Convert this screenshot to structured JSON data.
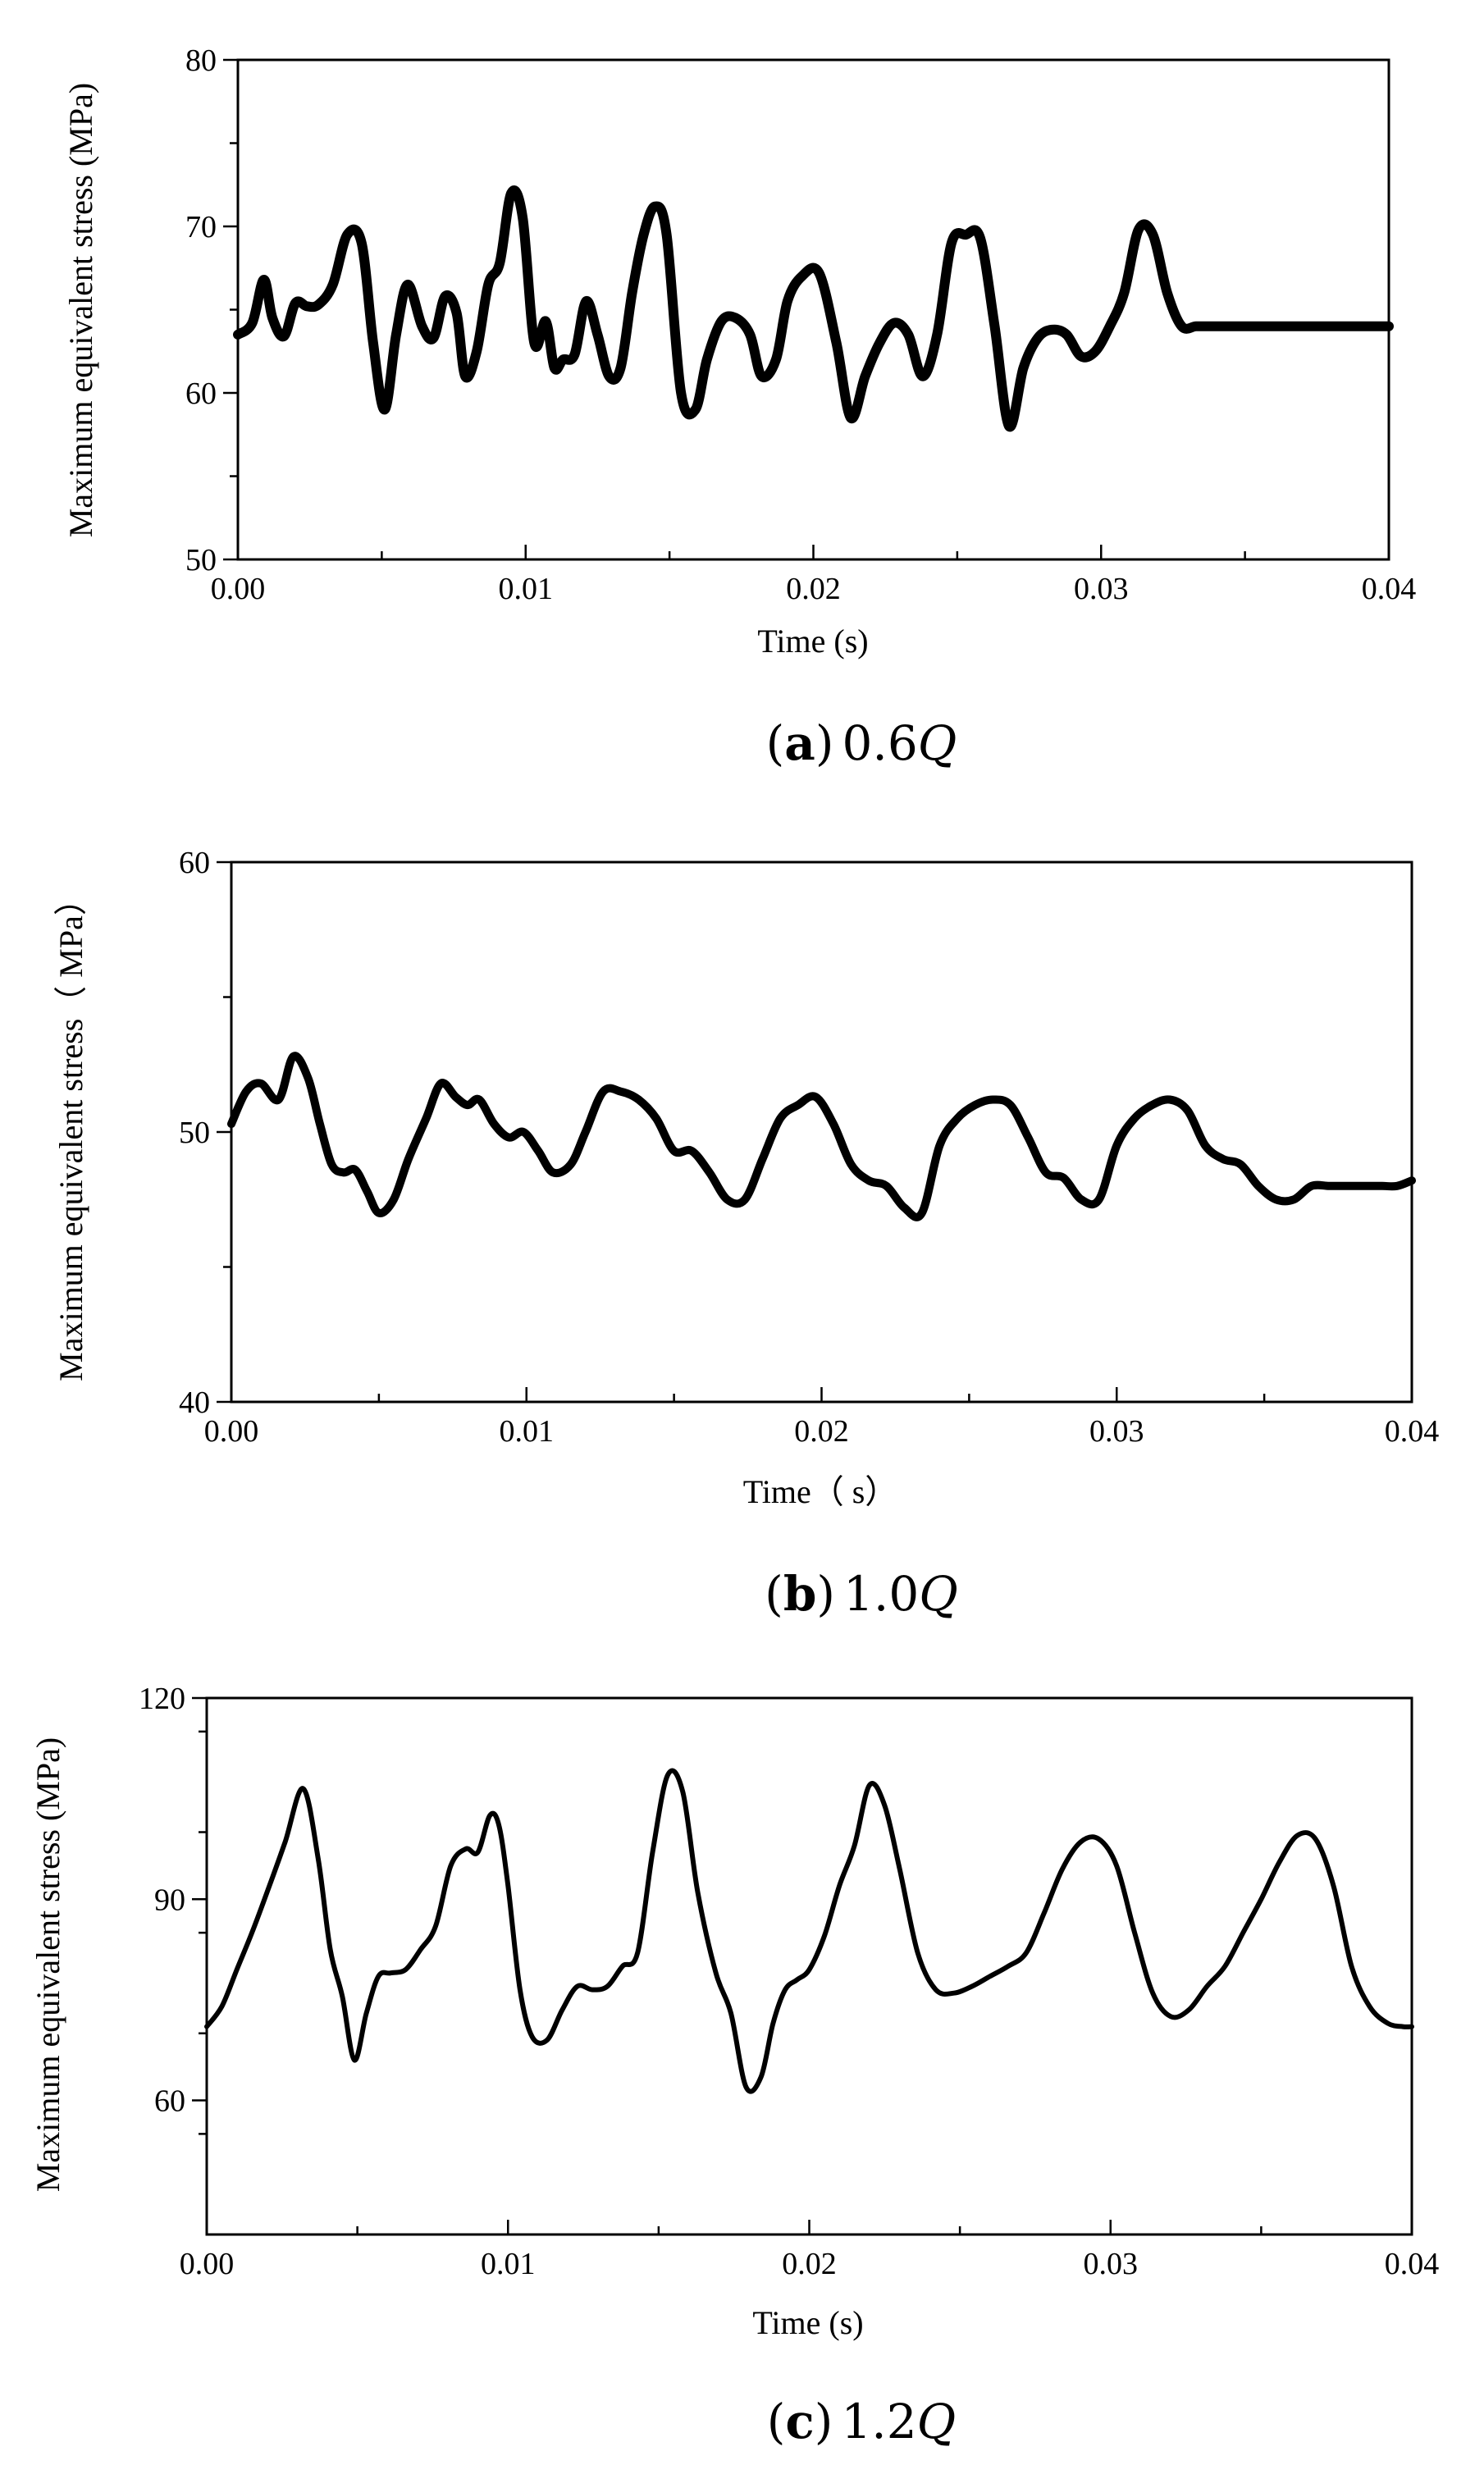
{
  "figure": {
    "panels": [
      {
        "caption": {
          "open": "(",
          "letter": "a",
          "close": ")",
          "value": "0.6",
          "symbol": "Q"
        },
        "chart_data": {
          "type": "line",
          "xlabel": "Time (s)",
          "ylabel": "Maximum equivalent stress (MPa)",
          "xlim": [
            0,
            0.04
          ],
          "ylim": [
            50,
            80
          ],
          "xticks": [
            0.0,
            0.01,
            0.02,
            0.03,
            0.04
          ],
          "xtick_labels": [
            "0.00",
            "0.01",
            "0.02",
            "0.03",
            "0.04"
          ],
          "yticks": [
            50,
            60,
            70,
            80
          ],
          "ytick_labels": [
            "50",
            "60",
            "70",
            "80"
          ],
          "series": [
            {
              "name": "0.6Q",
              "x": [
                0.0,
                0.0005,
                0.0009,
                0.0012,
                0.0016,
                0.002,
                0.0024,
                0.0028,
                0.0033,
                0.0038,
                0.0043,
                0.0047,
                0.0051,
                0.0055,
                0.0059,
                0.0064,
                0.0068,
                0.0072,
                0.0076,
                0.0079,
                0.0083,
                0.0087,
                0.0091,
                0.0095,
                0.0099,
                0.0103,
                0.0107,
                0.011,
                0.0113,
                0.0117,
                0.0121,
                0.0125,
                0.0129,
                0.0133,
                0.0137,
                0.0141,
                0.0145,
                0.0149,
                0.0154,
                0.0159,
                0.0163,
                0.0168,
                0.0173,
                0.0178,
                0.0182,
                0.0187,
                0.0191,
                0.0196,
                0.0202,
                0.0208,
                0.0213,
                0.0218,
                0.0223,
                0.0228,
                0.0233,
                0.0238,
                0.0243,
                0.0248,
                0.0253,
                0.0258,
                0.0263,
                0.0268,
                0.0273,
                0.0278,
                0.0283,
                0.0288,
                0.0293,
                0.0298,
                0.0303,
                0.0308,
                0.0313,
                0.0318,
                0.0323,
                0.0328,
                0.0333,
                0.0338,
                0.0343,
                0.0348,
                0.0353,
                0.0358,
                0.0363,
                0.0368,
                0.0373,
                0.0378,
                0.0383,
                0.0388,
                0.0392,
                0.0396,
                0.04
              ],
              "y": [
                63.5,
                64.2,
                66.8,
                64.5,
                63.4,
                65.4,
                65.2,
                65.3,
                66.5,
                69.5,
                69.0,
                63.0,
                59.0,
                63.5,
                66.5,
                64.0,
                63.3,
                65.8,
                64.8,
                61.0,
                62.5,
                66.5,
                67.8,
                72.0,
                70.5,
                63.0,
                64.3,
                61.5,
                62.0,
                62.3,
                65.5,
                63.5,
                61.0,
                61.5,
                66.0,
                69.5,
                71.2,
                69.5,
                60.0,
                59.0,
                62.0,
                64.3,
                64.5,
                63.5,
                61.0,
                62.0,
                65.5,
                67.0,
                67.2,
                63.0,
                58.5,
                61.0,
                63.0,
                64.2,
                63.5,
                61.0,
                63.5,
                69.0,
                69.5,
                69.3,
                64.0,
                58.0,
                61.5,
                63.3,
                63.8,
                63.5,
                62.2,
                62.5,
                64.0,
                66.0,
                69.8,
                69.5,
                66.0,
                64.0,
                64.0,
                64.0,
                64.0,
                64.0,
                64.0,
                64.0,
                64.0,
                64.0,
                64.0,
                64.0,
                64.0,
                64.0,
                64.0,
                64.0,
                64.0
              ]
            }
          ]
        }
      },
      {
        "caption": {
          "open": "(",
          "letter": "b",
          "close": ")",
          "value": "1.0",
          "symbol": "Q"
        },
        "chart_data": {
          "type": "line",
          "xlabel": "Time（  s）",
          "ylabel": "Maximum equivalent stress（  MPa）",
          "xlim": [
            0,
            0.04
          ],
          "ylim": [
            40,
            60
          ],
          "xticks": [
            0.0,
            0.01,
            0.02,
            0.03,
            0.04
          ],
          "xtick_labels": [
            "0.00",
            "0.01",
            "0.02",
            "0.03",
            "0.04"
          ],
          "yticks": [
            40,
            50,
            60
          ],
          "ytick_labels": [
            "40",
            "50",
            "60"
          ],
          "series": [
            {
              "name": "1.0Q",
              "x": [
                0.0,
                0.0005,
                0.001,
                0.0016,
                0.0021,
                0.0026,
                0.003,
                0.0034,
                0.0038,
                0.0042,
                0.0046,
                0.005,
                0.0055,
                0.006,
                0.0066,
                0.0071,
                0.0076,
                0.008,
                0.0084,
                0.0089,
                0.0094,
                0.0099,
                0.0104,
                0.0109,
                0.0115,
                0.012,
                0.0126,
                0.0132,
                0.0138,
                0.0144,
                0.015,
                0.0156,
                0.0162,
                0.0168,
                0.0174,
                0.018,
                0.0186,
                0.0192,
                0.0198,
                0.0204,
                0.021,
                0.0216,
                0.0222,
                0.0228,
                0.0234,
                0.024,
                0.0246,
                0.0252,
                0.0258,
                0.0264,
                0.027,
                0.0276,
                0.0282,
                0.0288,
                0.0294,
                0.03,
                0.0306,
                0.0312,
                0.0318,
                0.0324,
                0.033,
                0.0336,
                0.0342,
                0.0348,
                0.0354,
                0.036,
                0.0366,
                0.0372,
                0.0378,
                0.0384,
                0.039,
                0.0395,
                0.04
              ],
              "y": [
                50.3,
                51.5,
                51.8,
                51.2,
                52.8,
                52.0,
                50.3,
                48.8,
                48.5,
                48.6,
                47.8,
                47.0,
                47.5,
                49.0,
                50.5,
                51.8,
                51.3,
                51.0,
                51.2,
                50.3,
                49.8,
                50.0,
                49.3,
                48.5,
                48.8,
                50.0,
                51.5,
                51.5,
                51.2,
                50.5,
                49.3,
                49.3,
                48.5,
                47.5,
                47.5,
                49.0,
                50.5,
                51.0,
                51.3,
                50.3,
                48.8,
                48.2,
                48.0,
                47.2,
                47.0,
                49.5,
                50.5,
                51.0,
                51.2,
                51.0,
                49.8,
                48.5,
                48.3,
                47.5,
                47.5,
                49.5,
                50.5,
                51.0,
                51.2,
                50.8,
                49.5,
                49.0,
                48.8,
                48.0,
                47.5,
                47.5,
                48.0,
                48.0,
                48.0,
                48.0,
                48.0,
                48.0,
                48.2
              ]
            }
          ]
        }
      },
      {
        "caption": {
          "open": "(",
          "letter": "c",
          "close": ")",
          "value": "1.2",
          "symbol": "Q"
        },
        "chart_data": {
          "type": "line",
          "xlabel": "Time (s)",
          "ylabel": "Maximum equivalent stress (MPa)",
          "xlim": [
            0,
            0.04
          ],
          "ylim": [
            40,
            120
          ],
          "xticks": [
            0.0,
            0.01,
            0.02,
            0.03,
            0.04
          ],
          "xtick_labels": [
            "0.00",
            "0.01",
            "0.02",
            "0.03",
            "0.04"
          ],
          "yticks": [
            60,
            90,
            120
          ],
          "ytick_labels": [
            "60",
            "90",
            "120"
          ],
          "series": [
            {
              "name": "1.2Q",
              "x": [
                0.0,
                0.0005,
                0.001,
                0.0015,
                0.002,
                0.0026,
                0.0032,
                0.0037,
                0.0041,
                0.0045,
                0.0049,
                0.0053,
                0.0057,
                0.0061,
                0.0066,
                0.0071,
                0.0076,
                0.0081,
                0.0086,
                0.009,
                0.0094,
                0.0097,
                0.01,
                0.0104,
                0.0108,
                0.0113,
                0.0118,
                0.0123,
                0.0128,
                0.0133,
                0.0138,
                0.0143,
                0.0148,
                0.0153,
                0.0158,
                0.0163,
                0.0169,
                0.0174,
                0.0179,
                0.0184,
                0.0188,
                0.0192,
                0.0196,
                0.02,
                0.0205,
                0.021,
                0.0215,
                0.022,
                0.0225,
                0.023,
                0.0236,
                0.0242,
                0.0248,
                0.0254,
                0.026,
                0.0266,
                0.0272,
                0.0278,
                0.0284,
                0.029,
                0.0296,
                0.0302,
                0.0308,
                0.0314,
                0.032,
                0.0326,
                0.0332,
                0.0338,
                0.0344,
                0.035,
                0.0356,
                0.0362,
                0.0368,
                0.0374,
                0.038,
                0.0386,
                0.0392,
                0.0397,
                0.04
              ],
              "y": [
                71.0,
                74.0,
                79.5,
                85.0,
                91.0,
                98.5,
                106.5,
                96.0,
                82.5,
                75.5,
                66.0,
                73.0,
                78.5,
                79.0,
                79.5,
                82.5,
                86.0,
                95.0,
                97.5,
                97.0,
                102.5,
                101.0,
                92.0,
                76.5,
                69.5,
                69.0,
                73.5,
                77.0,
                76.5,
                77.0,
                80.0,
                82.0,
                97.0,
                108.5,
                106.0,
                91.0,
                79.0,
                73.0,
                62.0,
                63.5,
                71.5,
                76.5,
                78.0,
                79.5,
                84.5,
                92.0,
                98.0,
                107.0,
                104.0,
                94.5,
                82.0,
                76.5,
                76.0,
                77.0,
                78.5,
                80.0,
                82.0,
                88.0,
                94.5,
                98.5,
                99.0,
                95.0,
                85.0,
                76.0,
                72.5,
                73.5,
                77.0,
                80.0,
                85.0,
                90.0,
                95.5,
                99.5,
                99.0,
                92.0,
                80.0,
                74.0,
                71.5,
                71.0,
                71.0
              ]
            }
          ]
        }
      }
    ]
  }
}
